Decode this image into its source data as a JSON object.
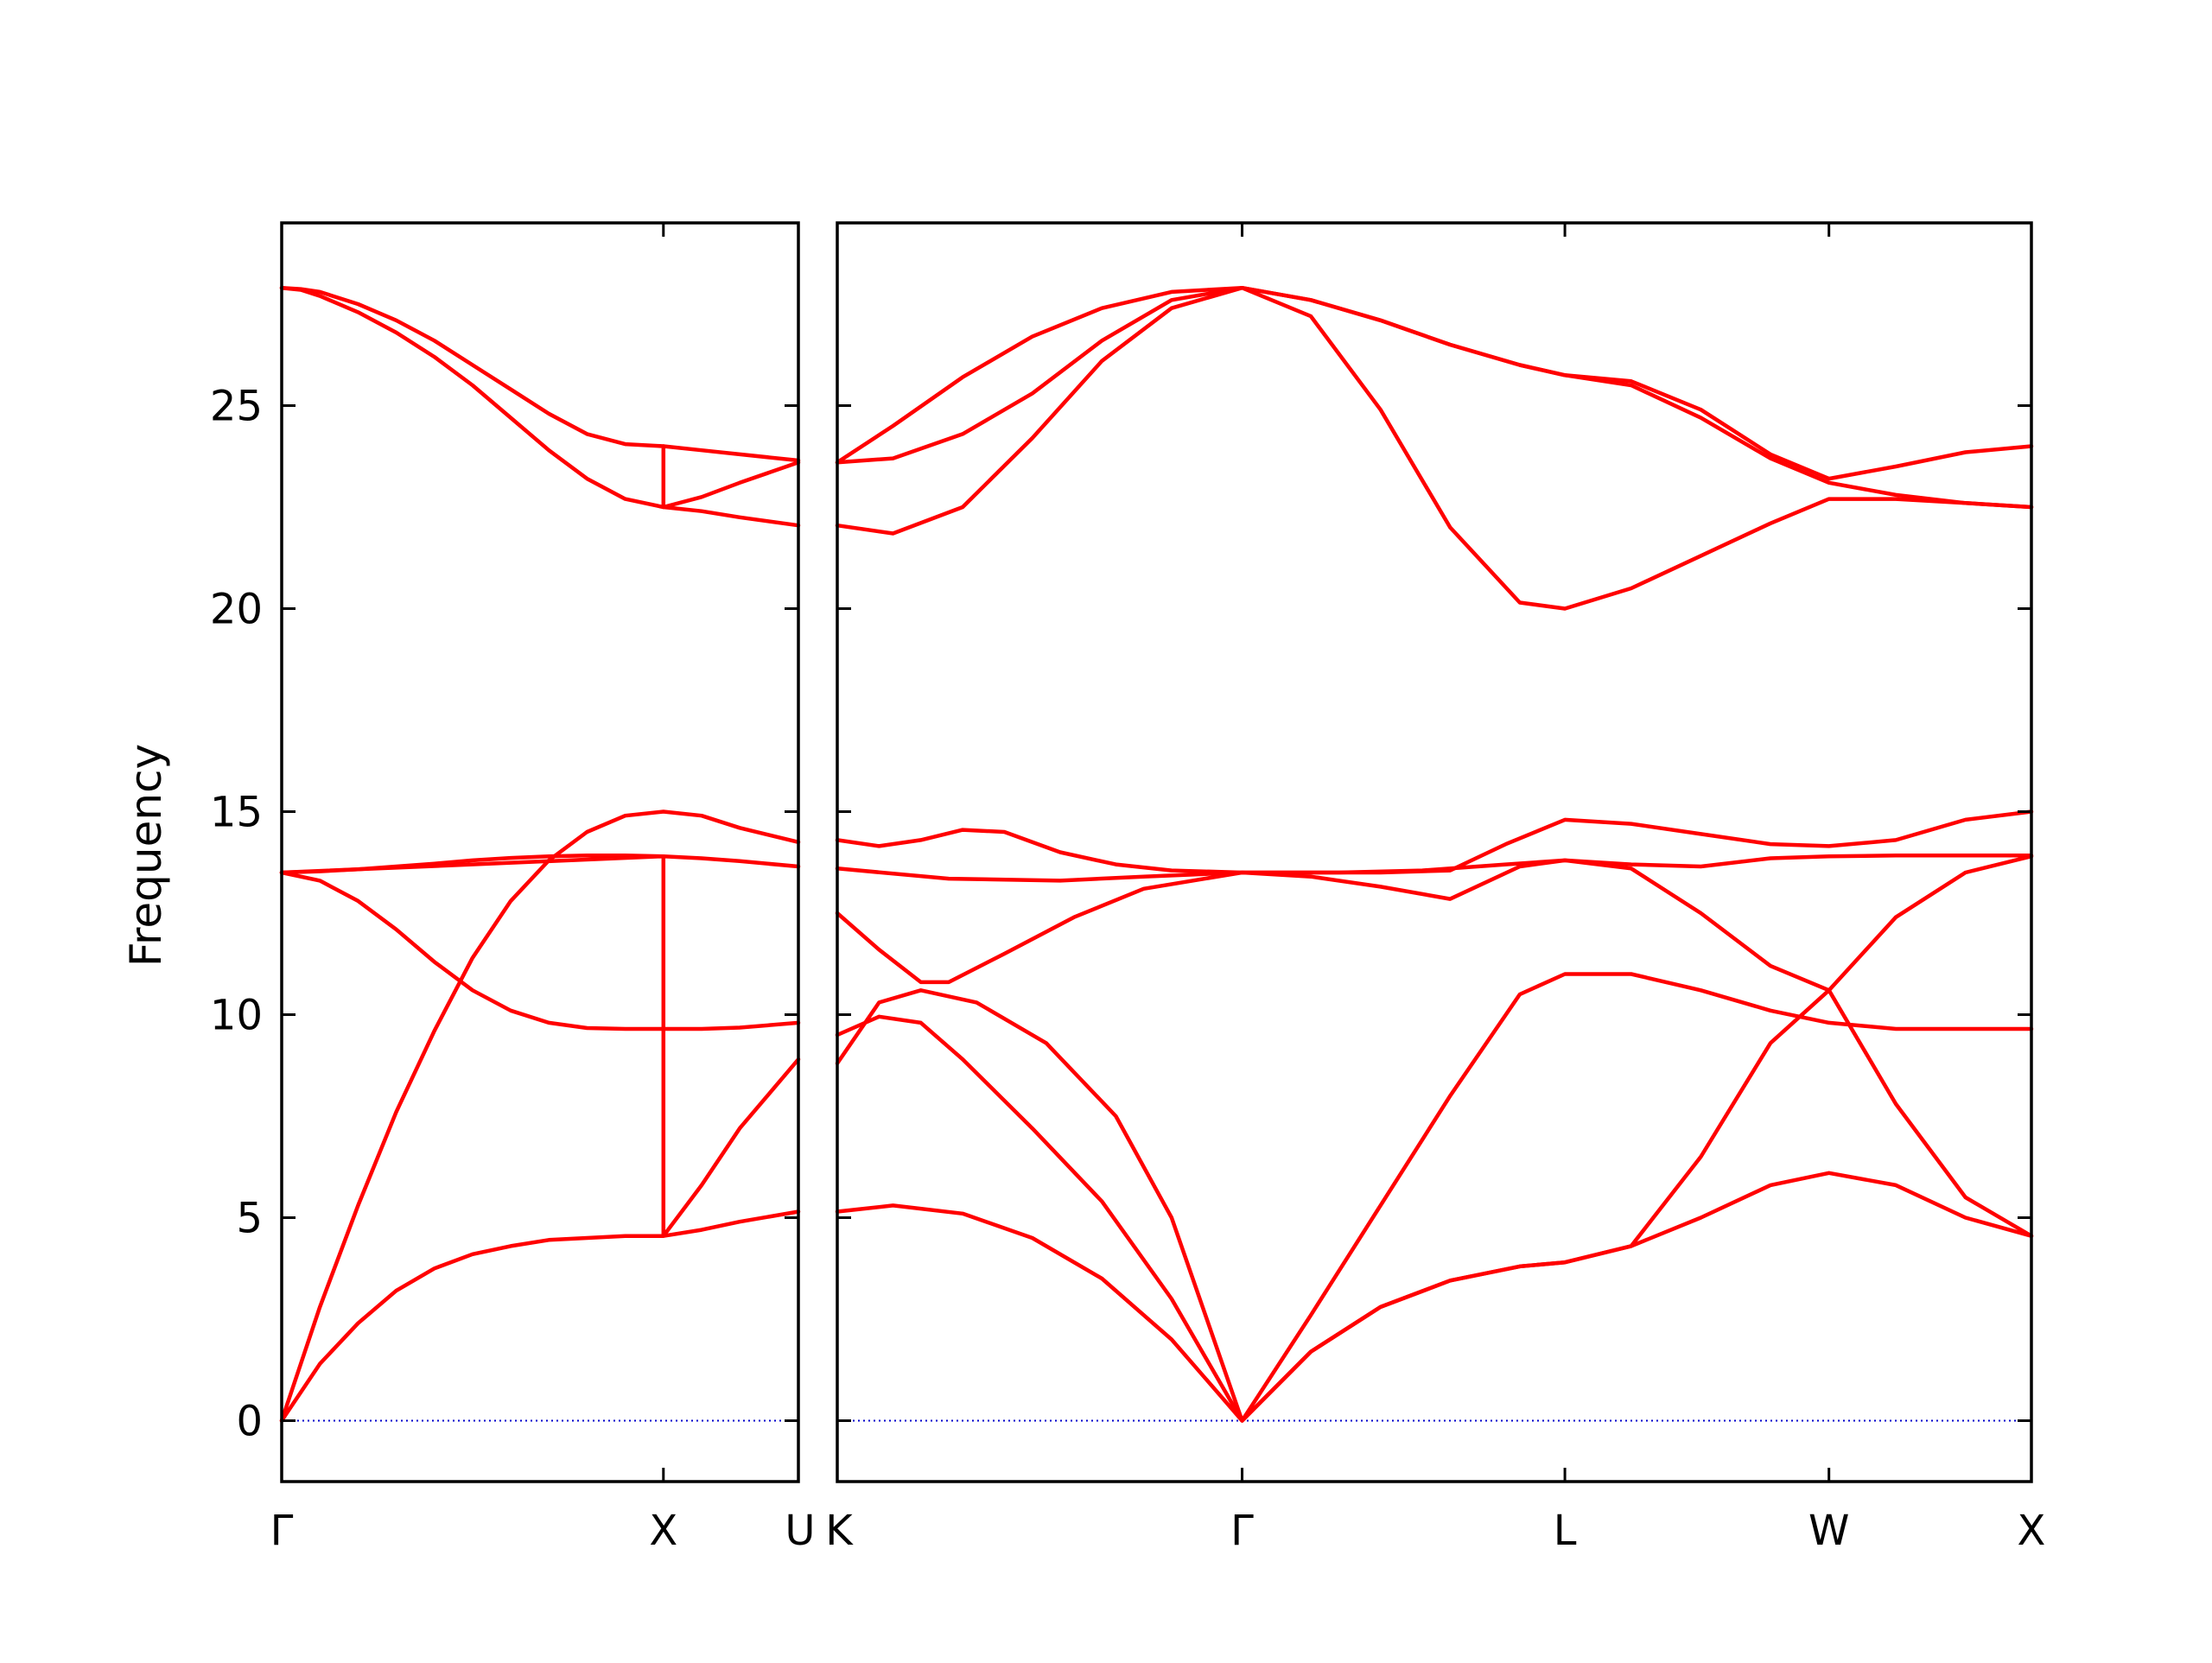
{
  "chart_data": {
    "type": "line",
    "ylabel": "Frequency",
    "ylim": [
      -1.5,
      29.5
    ],
    "yticks": [
      0,
      5,
      10,
      15,
      20,
      25
    ],
    "line_color": "#ff0000",
    "zero_line_color": "#0000cc",
    "grid": false,
    "panels": [
      {
        "id": "left",
        "x_range": [
          0,
          1.3536
        ],
        "xticks": [
          {
            "x": 0,
            "label": "Γ"
          },
          {
            "x": 1.0,
            "label": "X"
          },
          {
            "x": 1.3536,
            "label": "U"
          }
        ],
        "bands": [
          {
            "name": "",
            "x": [
              0,
              0.05,
              0.1,
              0.2,
              0.3,
              0.4,
              0.5,
              0.6,
              0.7,
              0.8,
              0.9,
              1.0,
              1.1,
              1.2,
              1.3536
            ],
            "y": [
              0,
              0.7,
              1.4,
              2.4,
              3.2,
              3.75,
              4.1,
              4.3,
              4.45,
              4.5,
              4.55,
              4.55,
              4.7,
              4.9,
              5.15
            ]
          },
          {
            "name": "",
            "x": [
              0,
              0.05,
              0.1,
              0.2,
              0.3,
              0.4,
              0.5,
              0.6,
              0.7,
              0.8,
              0.9,
              1.0,
              1.1,
              1.2,
              1.3536
            ],
            "y": [
              0,
              1.4,
              2.8,
              5.3,
              7.6,
              9.6,
              11.4,
              12.8,
              13.8,
              14.5,
              14.9,
              15.0,
              14.9,
              14.6,
              14.25
            ]
          },
          {
            "name": "",
            "x": [
              0,
              0.1,
              0.2,
              0.3,
              0.4,
              0.5,
              0.6,
              0.7,
              0.8,
              0.9,
              1.0,
              1.0001,
              1.1,
              1.2,
              1.3536
            ],
            "y": [
              13.5,
              13.3,
              12.8,
              12.1,
              11.3,
              10.6,
              10.1,
              9.8,
              9.67,
              9.65,
              9.65,
              4.55,
              5.8,
              7.2,
              8.9
            ]
          },
          {
            "name": "",
            "x": [
              0,
              0.1,
              0.2,
              0.3,
              0.4,
              0.5,
              0.6,
              0.7,
              0.8,
              0.9,
              1.0,
              1.0001,
              1.1,
              1.2,
              1.3536
            ],
            "y": [
              13.5,
              13.53,
              13.58,
              13.65,
              13.72,
              13.8,
              13.86,
              13.9,
              13.92,
              13.92,
              13.9,
              9.65,
              9.65,
              9.68,
              9.8
            ]
          },
          {
            "name": "",
            "x": [
              0,
              1.0,
              1.1,
              1.2,
              1.3536
            ],
            "y": [
              13.5,
              13.9,
              13.85,
              13.78,
              13.65
            ]
          },
          {
            "name": "",
            "x": [
              0,
              0.05,
              0.1,
              0.2,
              0.3,
              0.4,
              0.5,
              0.6,
              0.7,
              0.8,
              0.9,
              1.0,
              1.1,
              1.2,
              1.3536
            ],
            "y": [
              27.9,
              27.85,
              27.7,
              27.3,
              26.8,
              26.2,
              25.5,
              24.7,
              23.9,
              23.2,
              22.7,
              22.5,
              22.75,
              23.1,
              23.6
            ]
          },
          {
            "name": "",
            "x": [
              0,
              0.05,
              0.1,
              0.2,
              0.3,
              0.4,
              0.5,
              0.6,
              0.7,
              0.8,
              0.9,
              1.0,
              1.0001,
              1.1,
              1.2,
              1.3536
            ],
            "y": [
              27.9,
              27.87,
              27.8,
              27.5,
              27.1,
              26.6,
              26.0,
              25.4,
              24.8,
              24.3,
              24.05,
              24.0,
              22.5,
              22.4,
              22.25,
              22.05
            ]
          },
          {
            "name": "",
            "x": [
              1.0,
              1.1,
              1.2,
              1.3536
            ],
            "y": [
              24.0,
              23.9,
              23.8,
              23.65
            ]
          }
        ]
      },
      {
        "id": "right",
        "x_range": [
          0,
          4.2866
        ],
        "xticks": [
          {
            "x": 0,
            "label": "K"
          },
          {
            "x": 1.4533,
            "label": "Γ"
          },
          {
            "x": 2.6119,
            "label": "L"
          },
          {
            "x": 3.5598,
            "label": "W"
          },
          {
            "x": 4.2866,
            "label": "X"
          }
        ],
        "bands": [
          {
            "name": "",
            "x": [
              0,
              0.2,
              0.45,
              0.7,
              0.95,
              1.2,
              1.4533,
              1.7,
              1.95,
              2.2,
              2.45,
              2.6119,
              2.85,
              3.1,
              3.35,
              3.5598,
              3.8,
              4.05,
              4.2866
            ],
            "y": [
              5.15,
              5.3,
              5.1,
              4.5,
              3.5,
              2.0,
              0,
              1.7,
              2.8,
              3.45,
              3.8,
              3.9,
              4.3,
              5.0,
              5.8,
              6.1,
              5.8,
              5.0,
              4.55
            ]
          },
          {
            "name": "",
            "x": [
              0,
              0.15,
              0.3,
              0.45,
              0.7,
              0.95,
              1.2,
              1.4533,
              1.7,
              1.95,
              2.2,
              2.45,
              2.6119,
              2.85,
              3.1,
              3.35,
              3.5598,
              3.8,
              4.05,
              4.2866
            ],
            "y": [
              9.5,
              9.95,
              9.8,
              8.9,
              7.2,
              5.4,
              3.0,
              0,
              1.7,
              2.8,
              3.45,
              3.8,
              3.9,
              4.3,
              6.5,
              9.3,
              10.6,
              12.4,
              13.5,
              13.9
            ]
          },
          {
            "name": "",
            "x": [
              0,
              0.15,
              0.3,
              0.5,
              0.75,
              1.0,
              1.2,
              1.4533,
              1.7,
              1.95,
              2.2,
              2.45,
              2.6119,
              2.85,
              3.1,
              3.35,
              3.5598,
              3.8,
              4.05,
              4.2866
            ],
            "y": [
              8.8,
              10.3,
              10.6,
              10.3,
              9.3,
              7.5,
              5.0,
              0,
              2.6,
              5.3,
              8.0,
              10.5,
              11.0,
              11.0,
              10.6,
              10.1,
              9.8,
              9.65,
              9.65,
              9.65
            ]
          },
          {
            "name": "",
            "x": [
              0,
              0.15,
              0.3,
              0.4,
              0.6,
              0.85,
              1.1,
              1.4533,
              1.7,
              1.95,
              2.2,
              2.45,
              2.6119,
              2.85,
              3.1,
              3.35,
              3.5598,
              3.8,
              4.05,
              4.2866
            ],
            "y": [
              12.5,
              11.6,
              10.8,
              10.8,
              11.5,
              12.4,
              13.1,
              13.5,
              13.4,
              13.15,
              12.85,
              13.65,
              13.8,
              13.6,
              12.5,
              11.2,
              10.6,
              7.8,
              5.5,
              4.55
            ]
          },
          {
            "name": "",
            "x": [
              0,
              0.4,
              0.8,
              1.1,
              1.4533,
              1.8,
              2.1,
              2.4,
              2.6119,
              2.85,
              3.1,
              3.35,
              3.5598,
              3.8,
              4.05,
              4.2866
            ],
            "y": [
              13.6,
              13.35,
              13.3,
              13.4,
              13.5,
              13.5,
              13.55,
              13.7,
              13.8,
              13.7,
              13.65,
              13.85,
              13.9,
              13.92,
              13.92,
              13.92
            ]
          },
          {
            "name": "",
            "x": [
              0,
              0.15,
              0.3,
              0.45,
              0.6,
              0.8,
              1.0,
              1.2,
              1.4533,
              1.7,
              1.95,
              2.2,
              2.4,
              2.6119,
              2.85,
              3.1,
              3.35,
              3.5598,
              3.8,
              4.05,
              4.2866
            ],
            "y": [
              14.3,
              14.15,
              14.3,
              14.55,
              14.5,
              14.0,
              13.7,
              13.55,
              13.5,
              13.5,
              13.5,
              13.55,
              14.2,
              14.8,
              14.7,
              14.45,
              14.2,
              14.15,
              14.3,
              14.8,
              15.0
            ]
          },
          {
            "name": "",
            "x": [
              0,
              0.2,
              0.45,
              0.7,
              0.95,
              1.2,
              1.4533,
              1.7,
              1.95,
              2.2,
              2.45,
              2.6119,
              2.85,
              3.1,
              3.35,
              3.5598,
              3.8,
              4.05,
              4.2866
            ],
            "y": [
              22.05,
              21.85,
              22.5,
              24.2,
              26.1,
              27.4,
              27.9,
              27.2,
              24.9,
              22.0,
              20.15,
              20.0,
              20.5,
              21.3,
              22.1,
              22.7,
              22.7,
              22.6,
              22.5
            ]
          },
          {
            "name": "",
            "x": [
              0,
              0.2,
              0.45,
              0.7,
              0.95,
              1.2,
              1.4533,
              1.7,
              1.95,
              2.2,
              2.45,
              2.6119,
              2.85,
              3.1,
              3.35,
              3.5598,
              3.8,
              4.05,
              4.2866
            ],
            "y": [
              23.6,
              23.7,
              24.3,
              25.3,
              26.6,
              27.6,
              27.9,
              27.6,
              27.1,
              26.5,
              26.0,
              25.75,
              25.5,
              24.7,
              23.7,
              23.1,
              22.8,
              22.6,
              22.5
            ]
          },
          {
            "name": "",
            "x": [
              0,
              0.2,
              0.45,
              0.7,
              0.95,
              1.2,
              1.4533,
              1.7,
              1.95,
              2.2,
              2.45,
              2.6119,
              2.85,
              3.1,
              3.35,
              3.5598,
              3.8,
              4.05,
              4.2866
            ],
            "y": [
              23.6,
              24.5,
              25.7,
              26.7,
              27.4,
              27.8,
              27.9,
              27.6,
              27.1,
              26.5,
              26.0,
              25.75,
              25.6,
              24.9,
              23.8,
              23.2,
              23.5,
              23.85,
              24.0
            ]
          }
        ]
      }
    ]
  }
}
